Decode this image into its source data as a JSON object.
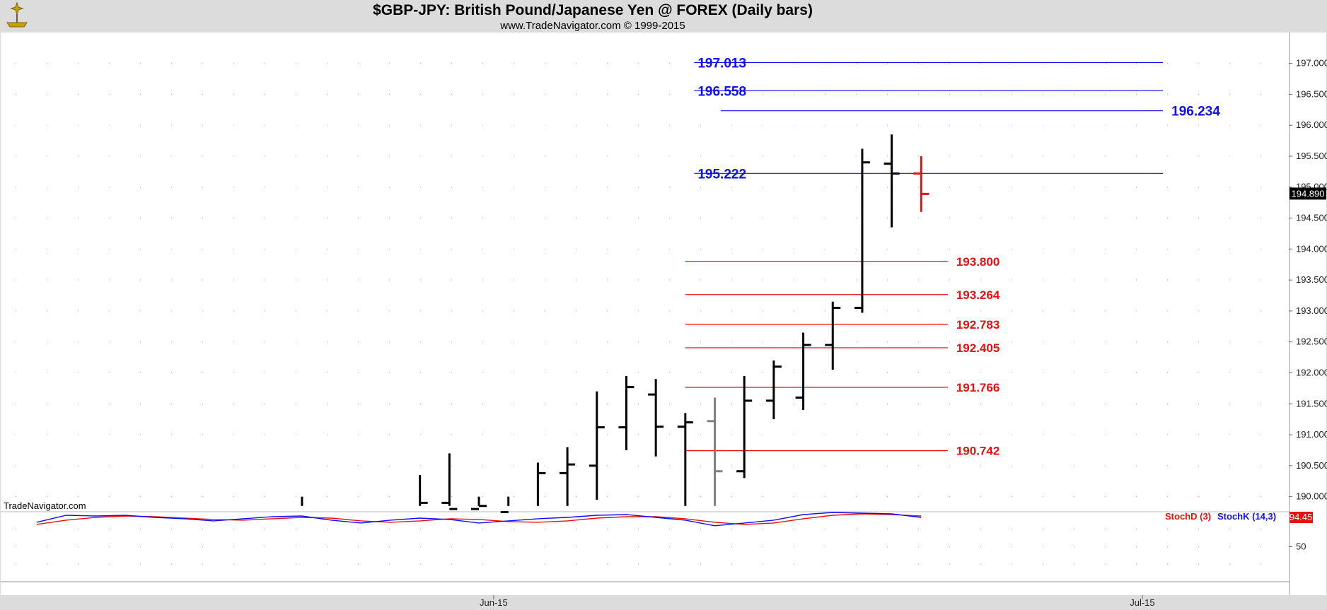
{
  "header": {
    "title": "$GBP-JPY:  British Pound/Japanese Yen @ FOREX  (Daily bars)",
    "copyright": "www.TradeNavigator.com © 1999-2015"
  },
  "brand": "TradeNavigator.com",
  "last_price_label": "194.890",
  "stoch_last_label": "94.45",
  "indicator_legend": {
    "stoch_d": "StochD (3)",
    "stoch_k": "StochK (14,3)"
  },
  "colors": {
    "background": "#ffffff",
    "frame": "#dcdcdc",
    "bar": "#000000",
    "hypothetical_bar": "#808080",
    "current_bar": "#e81010",
    "resistance": "#1010f0",
    "support": "#e81010"
  },
  "chart_data": [
    {
      "type": "ohlc",
      "title": "$GBP-JPY:  British Pound/Japanese Yen @ FOREX  (Daily bars)",
      "ylim": [
        189.85,
        197.35
      ],
      "y_ticks": [
        "197.000",
        "196.500",
        "196.000",
        "195.500",
        "195.000",
        "194.500",
        "194.000",
        "193.500",
        "193.000",
        "192.500",
        "192.000",
        "191.500",
        "191.000",
        "190.500",
        "190.000"
      ],
      "x_tick_labels": [
        {
          "text": "Jun-15",
          "index": 15.5
        },
        {
          "text": "Jul-15",
          "index": 37.5
        }
      ],
      "last_price": 194.89,
      "grid": true,
      "bars": [
        {
          "i": 9,
          "open": null,
          "high": 190.0,
          "low": 189.85,
          "close": null,
          "kind": "normal"
        },
        {
          "i": 13,
          "open": null,
          "high": 190.35,
          "low": 189.85,
          "close": 189.9,
          "kind": "normal"
        },
        {
          "i": 14,
          "open": 189.9,
          "high": 190.7,
          "low": 189.85,
          "close": 189.8,
          "kind": "normal"
        },
        {
          "i": 15,
          "open": 189.8,
          "high": 190.0,
          "low": 189.85,
          "close": 189.85,
          "kind": "normal"
        },
        {
          "i": 16,
          "open": 189.75,
          "high": 190.0,
          "low": 189.85,
          "close": null,
          "kind": "normal"
        },
        {
          "i": 17,
          "open": null,
          "high": 190.55,
          "low": 189.85,
          "close": 190.38,
          "kind": "normal"
        },
        {
          "i": 18,
          "open": 190.38,
          "high": 190.8,
          "low": 189.85,
          "close": 190.52,
          "kind": "normal"
        },
        {
          "i": 19,
          "open": 190.5,
          "high": 191.7,
          "low": 189.95,
          "close": 191.12,
          "kind": "normal"
        },
        {
          "i": 20,
          "open": 191.12,
          "high": 191.95,
          "low": 190.75,
          "close": 191.77,
          "kind": "normal"
        },
        {
          "i": 21,
          "open": 191.65,
          "high": 191.9,
          "low": 190.65,
          "close": 191.13,
          "kind": "normal"
        },
        {
          "i": 22,
          "open": 191.13,
          "high": 191.35,
          "low": 189.85,
          "close": 191.2,
          "kind": "normal"
        },
        {
          "i": 23,
          "open": 191.22,
          "high": 191.6,
          "low": 189.85,
          "close": 190.41,
          "kind": "hypothetical"
        },
        {
          "i": 24,
          "open": 190.41,
          "high": 191.95,
          "low": 190.3,
          "close": 191.55,
          "kind": "normal"
        },
        {
          "i": 25,
          "open": 191.55,
          "high": 192.2,
          "low": 191.25,
          "close": 192.1,
          "kind": "normal"
        },
        {
          "i": 26,
          "open": 191.6,
          "high": 192.65,
          "low": 191.4,
          "close": 192.45,
          "kind": "normal"
        },
        {
          "i": 27,
          "open": 192.45,
          "high": 193.15,
          "low": 192.05,
          "close": 193.05,
          "kind": "normal"
        },
        {
          "i": 28,
          "open": 193.05,
          "high": 195.62,
          "low": 192.97,
          "close": 195.4,
          "kind": "normal"
        },
        {
          "i": 29,
          "open": 195.38,
          "high": 195.85,
          "low": 194.35,
          "close": 195.22,
          "kind": "normal"
        },
        {
          "i": 30,
          "open": 195.22,
          "high": 195.5,
          "low": 194.6,
          "close": 194.89,
          "kind": "current"
        }
      ]
    },
    {
      "type": "line",
      "title": "",
      "ylim": [
        0,
        100
      ],
      "y_ticks": [
        "50"
      ],
      "series": [
        {
          "name": "StochD (3)",
          "color": "#e81010",
          "x": [
            0,
            1,
            2,
            3,
            4,
            5,
            6,
            7,
            8,
            9,
            10,
            11,
            12,
            13,
            14,
            15,
            16,
            17,
            18,
            19,
            20,
            21,
            22,
            23,
            24,
            25,
            26,
            27,
            28,
            29,
            30
          ],
          "values": [
            82,
            88,
            92,
            94,
            93,
            91,
            89,
            88,
            90,
            92,
            91,
            87,
            85,
            87,
            90,
            89,
            86,
            85,
            87,
            91,
            93,
            93,
            90,
            85,
            82,
            84,
            90,
            95,
            97,
            96,
            94
          ]
        },
        {
          "name": "StochK (14,3)",
          "color": "#1010f0",
          "x": [
            0,
            1,
            2,
            3,
            4,
            5,
            6,
            7,
            8,
            9,
            10,
            11,
            12,
            13,
            14,
            15,
            16,
            17,
            18,
            19,
            20,
            21,
            22,
            23,
            24,
            25,
            26,
            27,
            28,
            29,
            30
          ],
          "values": [
            85,
            95,
            94,
            95,
            92,
            90,
            87,
            90,
            93,
            94,
            88,
            84,
            88,
            91,
            89,
            84,
            87,
            90,
            92,
            95,
            96,
            92,
            88,
            80,
            84,
            88,
            96,
            99,
            98,
            97,
            92
          ]
        }
      ]
    }
  ],
  "levels": [
    {
      "value": 197.013,
      "label": "197.013",
      "color": "#1010f0",
      "side": "left",
      "x_from": 22.3,
      "x_to": 38.2
    },
    {
      "value": 196.558,
      "label": "196.558",
      "color": "#1010f0",
      "side": "left",
      "x_from": 22.3,
      "x_to": 38.2
    },
    {
      "value": 196.234,
      "label": "196.234",
      "color": "#1010f0",
      "side": "right",
      "x_from": 23.2,
      "x_to": 38.2
    },
    {
      "value": 195.222,
      "label": "195.222",
      "color": "#1010f0",
      "side": "left",
      "x_from": 22.3,
      "x_to": 38.2
    },
    {
      "value": 193.8,
      "label": "193.800",
      "color": "#e81010",
      "side": "end",
      "x_from": 22.0,
      "x_to": 30.9
    },
    {
      "value": 193.264,
      "label": "193.264",
      "color": "#e81010",
      "side": "end",
      "x_from": 22.0,
      "x_to": 30.9
    },
    {
      "value": 192.783,
      "label": "192.783",
      "color": "#e81010",
      "side": "end",
      "x_from": 22.0,
      "x_to": 30.9
    },
    {
      "value": 192.405,
      "label": "192.405",
      "color": "#e81010",
      "side": "end",
      "x_from": 22.0,
      "x_to": 30.9
    },
    {
      "value": 191.766,
      "label": "191.766",
      "color": "#e81010",
      "side": "end",
      "x_from": 22.0,
      "x_to": 30.9
    },
    {
      "value": 190.742,
      "label": "190.742",
      "color": "#e81010",
      "side": "end",
      "x_from": 22.0,
      "x_to": 30.9
    }
  ]
}
